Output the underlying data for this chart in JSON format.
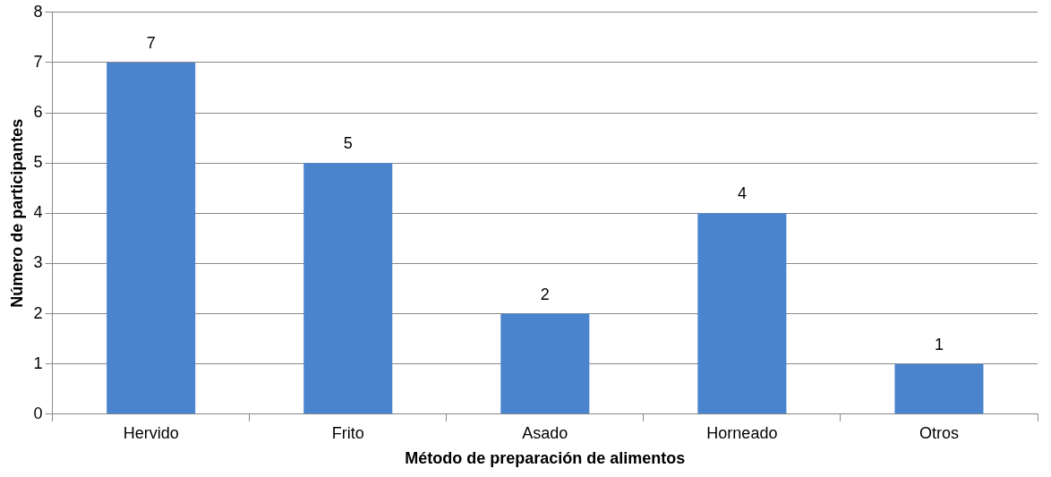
{
  "chart_data": {
    "type": "bar",
    "xlabel": "Método de preparación de alimentos",
    "ylabel": "Número de participantes",
    "categories": [
      "Hervido",
      "Frito",
      "Asado",
      "Horneado",
      "Otros"
    ],
    "values": [
      7,
      5,
      2,
      4,
      1
    ],
    "color": "#4a84cc",
    "ylim": [
      0,
      8
    ],
    "yticks": [
      0,
      1,
      2,
      3,
      4,
      5,
      6,
      7,
      8
    ],
    "grid": "y",
    "data_labels": true,
    "legend": false
  }
}
